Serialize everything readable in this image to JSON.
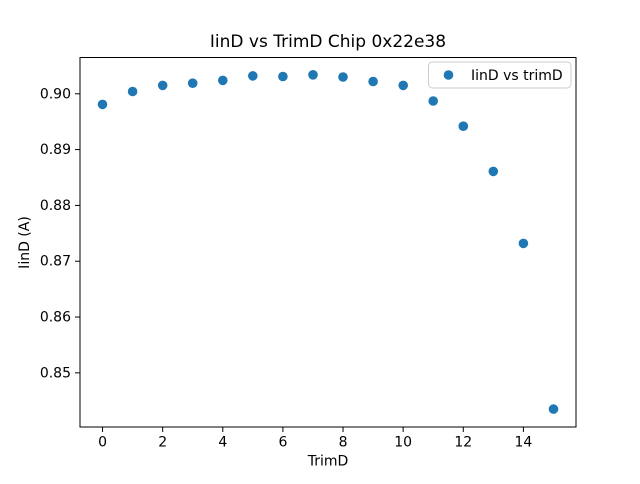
{
  "window": {
    "title": "IinD vs TrimD Chip 0x22e38"
  },
  "colors": {
    "marker": "#1f77b4",
    "axes": "#000000",
    "background": "#ffffff",
    "legend_border": "#cccccc"
  },
  "chart_data": {
    "type": "scatter",
    "title": "IinD vs TrimD Chip 0x22e38",
    "xlabel": "TrimD",
    "ylabel": "IinD (A)",
    "grid": false,
    "legend_position": "upper right",
    "xlim": [
      -0.75,
      15.75
    ],
    "ylim": [
      0.8403,
      0.9065
    ],
    "xticks": {
      "values": [
        0,
        2,
        4,
        6,
        8,
        10,
        12,
        14
      ],
      "labels": [
        "0",
        "2",
        "4",
        "6",
        "8",
        "10",
        "12",
        "14"
      ]
    },
    "yticks": {
      "values": [
        0.85,
        0.86,
        0.87,
        0.88,
        0.89,
        0.9
      ],
      "labels": [
        "0.85",
        "0.86",
        "0.87",
        "0.88",
        "0.89",
        "0.90"
      ]
    },
    "marker_color": "#1f77b4",
    "series": [
      {
        "name": "IinD vs trimD",
        "x": [
          0,
          1,
          2,
          3,
          4,
          5,
          6,
          7,
          8,
          9,
          10,
          11,
          12,
          13,
          14,
          15
        ],
        "y": [
          0.8981,
          0.9004,
          0.9015,
          0.9019,
          0.9024,
          0.9032,
          0.9031,
          0.9034,
          0.903,
          0.9022,
          0.9015,
          0.8987,
          0.8942,
          0.8861,
          0.8732,
          0.8435
        ]
      }
    ]
  }
}
